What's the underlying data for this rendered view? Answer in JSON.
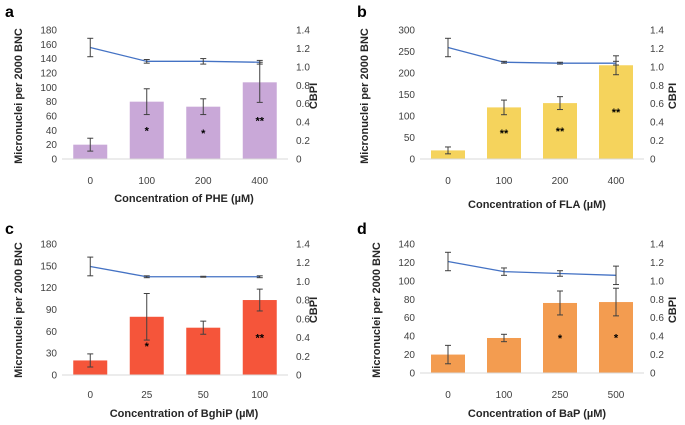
{
  "line_color": "#4472c4",
  "error_color": "#404040",
  "chart_data": [
    {
      "panel": "a",
      "type": "bar",
      "bar_color": "#c9a8d8",
      "categories": [
        "0",
        "100",
        "200",
        "400"
      ],
      "values": [
        20,
        80,
        73,
        107
      ],
      "errors": [
        9,
        18,
        11,
        28
      ],
      "significance": [
        "",
        "*",
        "*",
        "**"
      ],
      "ylabel": "Micronuclei per 2000 BNC",
      "ylim": [
        0,
        180
      ],
      "yticks": [
        "0",
        "20",
        "40",
        "60",
        "80",
        "100",
        "120",
        "140",
        "160",
        "180"
      ],
      "y2label": "CBPI",
      "y2lim": [
        0,
        1.4
      ],
      "y2ticks": [
        "0",
        "0.2",
        "0.4",
        "0.6",
        "0.8",
        "1.0",
        "1.2",
        "1.4"
      ],
      "cbpi": [
        1.21,
        1.06,
        1.06,
        1.05
      ],
      "cbpi_errors": [
        0.1,
        0.02,
        0.03,
        0.02
      ],
      "xlabel": "Concentration of PHE (µM)"
    },
    {
      "panel": "b",
      "type": "bar",
      "bar_color": "#f5d35c",
      "categories": [
        "0",
        "100",
        "200",
        "400"
      ],
      "values": [
        20,
        120,
        130,
        218
      ],
      "errors": [
        8,
        17,
        15,
        22
      ],
      "significance": [
        "",
        "**",
        "**",
        "**"
      ],
      "ylabel": "Micronuclei per 2000 BNC",
      "ylim": [
        0,
        300
      ],
      "yticks": [
        "0",
        "50",
        "100",
        "150",
        "200",
        "250",
        "300"
      ],
      "y2label": "CBPI",
      "y2lim": [
        0,
        1.4
      ],
      "y2ticks": [
        "0",
        "0.2",
        "0.4",
        "0.6",
        "0.8",
        "1.0",
        "1.2",
        "1.4"
      ],
      "cbpi": [
        1.21,
        1.05,
        1.04,
        1.04
      ],
      "cbpi_errors": [
        0.1,
        0.01,
        0.01,
        0.02
      ],
      "xlabel": "Concentration of FLA (µM)"
    },
    {
      "panel": "c",
      "type": "bar",
      "bar_color": "#f5553a",
      "categories": [
        "0",
        "25",
        "50",
        "100"
      ],
      "values": [
        20,
        80,
        65,
        103
      ],
      "errors": [
        9,
        32,
        9,
        15
      ],
      "significance": [
        "",
        "*",
        "",
        "**"
      ],
      "ylabel": "Micronuclei per 2000 BNC",
      "ylim": [
        0,
        180
      ],
      "yticks": [
        "0",
        "30",
        "60",
        "90",
        "120",
        "150",
        "180"
      ],
      "y2label": "CBPI",
      "y2lim": [
        0,
        1.4
      ],
      "y2ticks": [
        "0",
        "0.2",
        "0.4",
        "0.6",
        "0.8",
        "1.0",
        "1.2",
        "1.4"
      ],
      "cbpi": [
        1.16,
        1.05,
        1.05,
        1.05
      ],
      "cbpi_errors": [
        0.1,
        0.01,
        0.005,
        0.01
      ],
      "xlabel": "Concentration of BghiP (µM)"
    },
    {
      "panel": "d",
      "type": "bar",
      "bar_color": "#f39c50",
      "categories": [
        "0",
        "100",
        "250",
        "500"
      ],
      "values": [
        20,
        38,
        76,
        77
      ],
      "errors": [
        10,
        4,
        13,
        15
      ],
      "significance": [
        "",
        "",
        "*",
        "*"
      ],
      "ylabel": "Micronuclei per 2000 BNC",
      "ylim": [
        0,
        140
      ],
      "yticks": [
        "0",
        "20",
        "40",
        "60",
        "80",
        "100",
        "120",
        "140"
      ],
      "y2label": "CBPI",
      "y2lim": [
        0,
        1.4
      ],
      "y2ticks": [
        "0",
        "0.2",
        "0.4",
        "0.6",
        "0.8",
        "1.0",
        "1.2",
        "1.4"
      ],
      "cbpi": [
        1.21,
        1.1,
        1.08,
        1.06
      ],
      "cbpi_errors": [
        0.1,
        0.04,
        0.03,
        0.1
      ],
      "xlabel": "Concentration of BaP (µM)"
    }
  ]
}
